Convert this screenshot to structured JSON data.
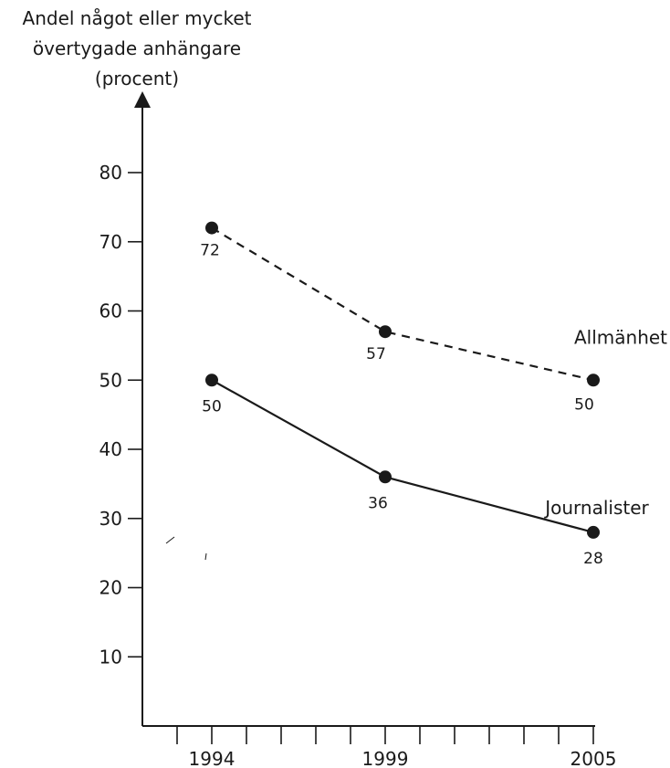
{
  "chart_data": {
    "type": "line",
    "title": "",
    "ylabel_lines": [
      "Andel något eller mycket",
      "övertygade anhängare",
      "(procent)"
    ],
    "xlabel": "",
    "x": [
      1994,
      1999,
      2005
    ],
    "x_tick_labels": [
      "1994",
      "1999",
      "2005"
    ],
    "x_range": [
      1992,
      2005
    ],
    "y_ticks": [
      10,
      20,
      30,
      40,
      50,
      60,
      70,
      80
    ],
    "ylim": [
      0,
      90
    ],
    "grid": false,
    "series": [
      {
        "name": "Allmänhet",
        "style": "dashed",
        "values": [
          72,
          57,
          50
        ],
        "labels": [
          "72",
          "57",
          "50"
        ]
      },
      {
        "name": "Journalister",
        "style": "solid",
        "values": [
          50,
          36,
          28
        ],
        "labels": [
          "50",
          "36",
          "28"
        ]
      }
    ]
  }
}
